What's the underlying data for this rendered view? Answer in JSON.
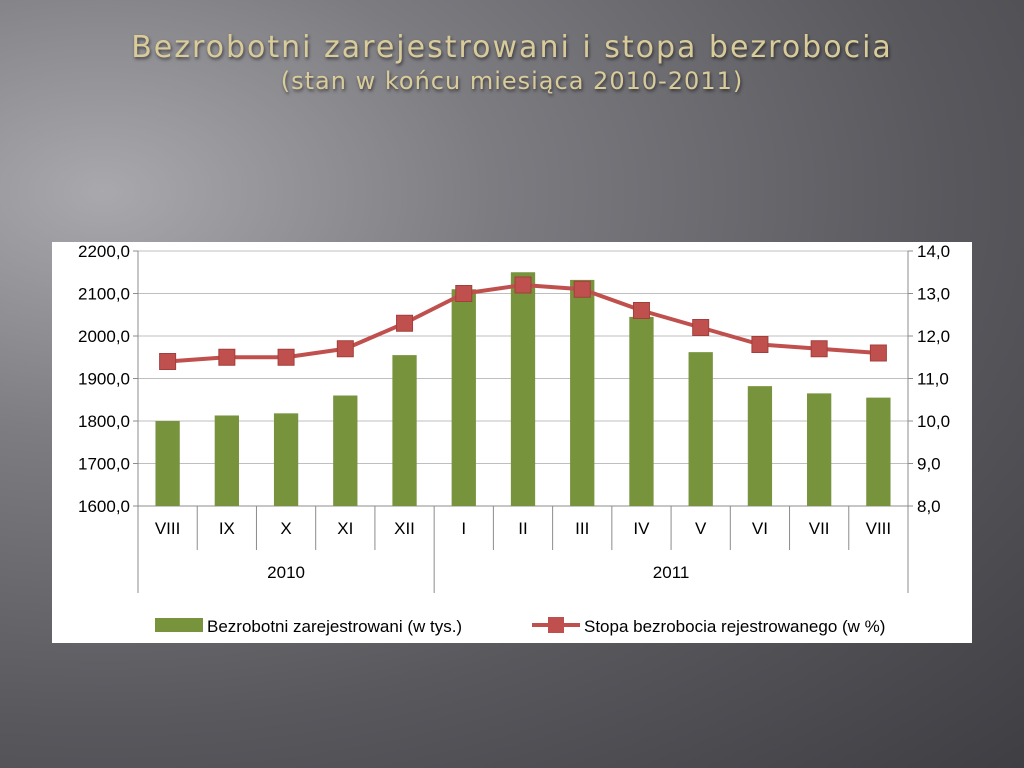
{
  "slide": {
    "title": "Bezrobotni zarejestrowani i stopa bezrobocia",
    "subtitle": "(stan w końcu miesiąca 2010-2011)"
  },
  "chart_data": {
    "type": "bar",
    "categories": [
      "VIII",
      "IX",
      "X",
      "XI",
      "XII",
      "I",
      "II",
      "III",
      "IV",
      "V",
      "VI",
      "VII",
      "VIII"
    ],
    "groups": [
      {
        "label": "2010",
        "count": 5
      },
      {
        "label": "2011",
        "count": 8
      }
    ],
    "series": [
      {
        "name": "Bezrobotni zarejestrowani (w tys.)",
        "type": "bar",
        "axis": "left",
        "color": "#77933c",
        "values": [
          1800,
          1813,
          1818,
          1860,
          1955,
          2110,
          2150,
          2132,
          2045,
          1962,
          1882,
          1865,
          1855
        ]
      },
      {
        "name": "Stopa bezrobocia rejestrowanego (w %)",
        "type": "line",
        "axis": "right",
        "color": "#c0504d",
        "values": [
          11.4,
          11.5,
          11.5,
          11.7,
          12.3,
          13.0,
          13.2,
          13.1,
          12.6,
          12.2,
          11.8,
          11.7,
          11.6
        ]
      }
    ],
    "y_left": {
      "ylim": [
        1600,
        2200
      ],
      "ticks": [
        "1600,0",
        "1700,0",
        "1800,0",
        "1900,0",
        "2000,0",
        "2100,0",
        "2200,0"
      ]
    },
    "y_right": {
      "ylim": [
        8,
        14
      ],
      "ticks": [
        "8,0",
        "9,0",
        "10,0",
        "11,0",
        "12,0",
        "13,0",
        "14,0"
      ]
    },
    "grid": true,
    "legend_position": "bottom"
  }
}
